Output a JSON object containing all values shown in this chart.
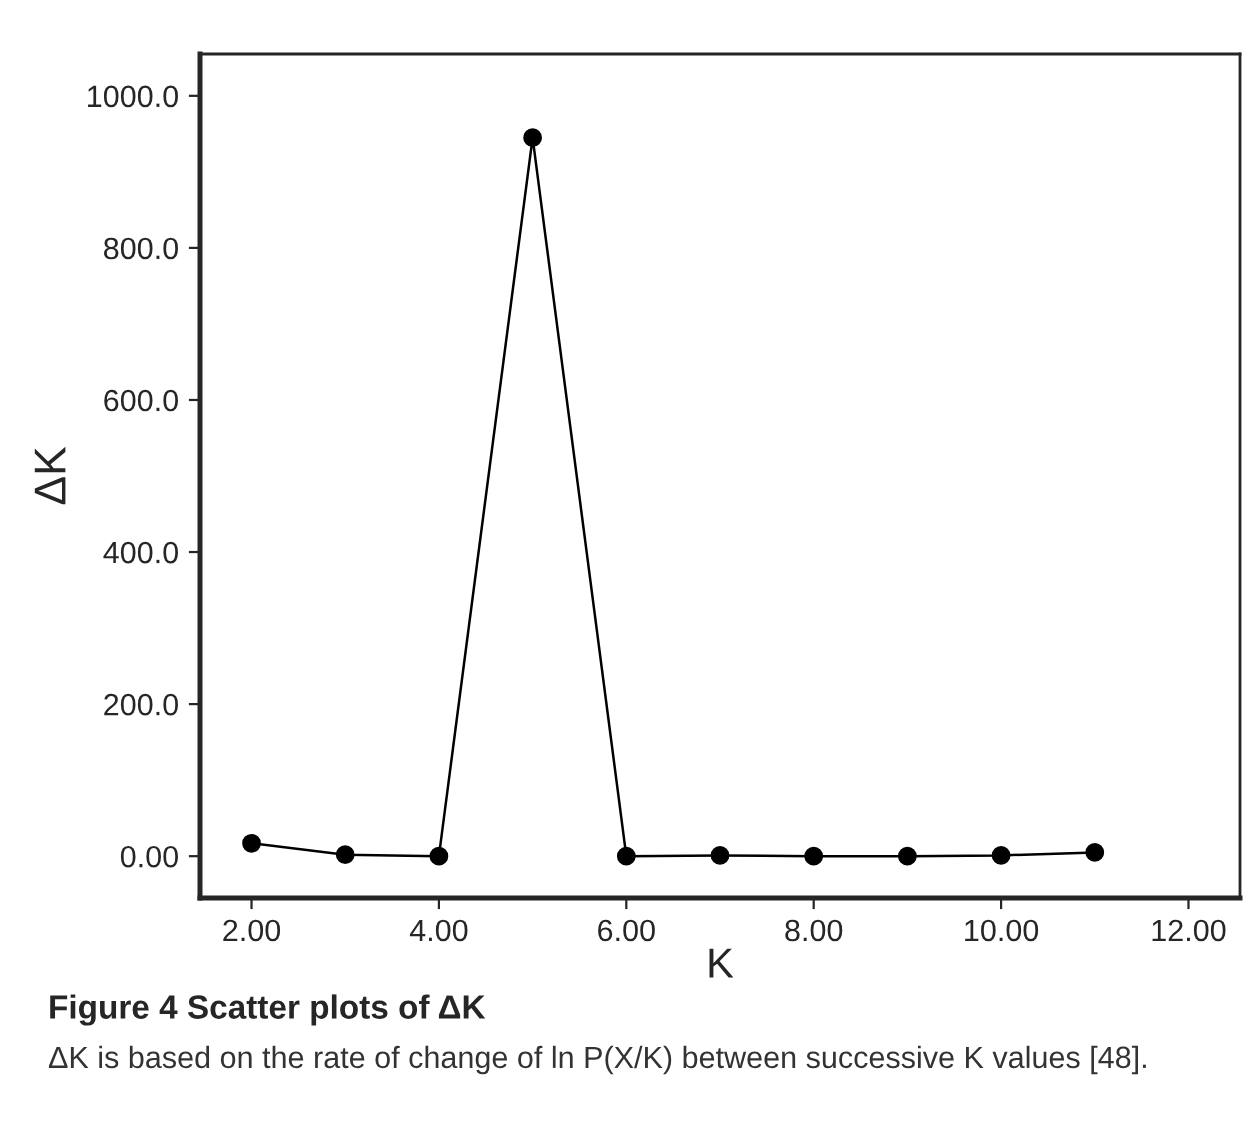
{
  "chart_data": {
    "type": "line",
    "title": "Figure 4 Scatter plots of ΔK",
    "xlabel": "K",
    "ylabel": "ΔK",
    "x": [
      2,
      3,
      4,
      5,
      6,
      7,
      8,
      9,
      10,
      11
    ],
    "series": [
      {
        "color": "#000000",
        "values": [
          17,
          2,
          0,
          945,
          0,
          1,
          0,
          0,
          1,
          5
        ]
      }
    ],
    "xlim": [
      1.45,
      12.55
    ],
    "ylim": [
      -55,
      1055
    ],
    "xticks": [
      {
        "value": 2,
        "label": "2.00"
      },
      {
        "value": 4,
        "label": "4.00"
      },
      {
        "value": 6,
        "label": "6.00"
      },
      {
        "value": 8,
        "label": "8.00"
      },
      {
        "value": 10,
        "label": "10.00"
      },
      {
        "value": 12,
        "label": "12.00"
      }
    ],
    "yticks": [
      {
        "value": 0,
        "label": "0.00"
      },
      {
        "value": 200,
        "label": "200.0"
      },
      {
        "value": 400,
        "label": "400.0"
      },
      {
        "value": 600,
        "label": "600.0"
      },
      {
        "value": 800,
        "label": "800.0"
      },
      {
        "value": 1000,
        "label": "1000.0"
      }
    ],
    "marker": "circle",
    "line_style": "solid",
    "grid": false,
    "legend": false,
    "annotations": [
      "ΔK is based on the rate of change of ln P(X/K) between successive K values [48]."
    ]
  }
}
